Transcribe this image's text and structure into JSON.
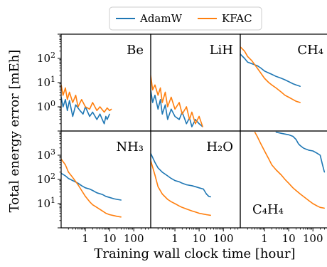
{
  "legend": {
    "items": [
      {
        "name": "AdamW",
        "color": "#1f77b4"
      },
      {
        "name": "KFAC",
        "color": "#ff7f0e"
      }
    ]
  },
  "axes": {
    "xlabel": "Training wall clock time [hour]",
    "ylabel": "Total energy error [mEh]",
    "xscale": "log",
    "yscale": "log",
    "top_row": {
      "ylim": [
        0.1,
        1000
      ],
      "yticks": [
        1,
        10,
        100
      ],
      "ytick_labels": [
        "10^0",
        "10^1",
        "10^2"
      ]
    },
    "bottom_row": {
      "ylim": [
        1,
        10000
      ],
      "yticks": [
        10,
        100,
        1000
      ],
      "ytick_labels": [
        "10^1",
        "10^2",
        "10^3"
      ]
    },
    "xlim": [
      0.1,
      500
    ],
    "xticks": [
      1,
      10,
      100
    ],
    "xtick_labels": [
      "1",
      "10",
      "100"
    ]
  },
  "chart_data": [
    {
      "type": "line",
      "title": "Be",
      "series": [
        {
          "name": "AdamW",
          "color": "#1f77b4",
          "x": [
            0.1,
            0.12,
            0.15,
            0.18,
            0.22,
            0.3,
            0.4,
            0.6,
            0.8,
            1,
            1.5,
            2,
            3,
            4,
            5,
            6,
            7,
            8,
            10
          ],
          "y": [
            2.5,
            1.0,
            2.0,
            0.7,
            1.8,
            0.4,
            1.2,
            0.7,
            0.5,
            1.0,
            0.4,
            0.6,
            0.3,
            0.5,
            0.3,
            0.2,
            0.4,
            0.3,
            0.5
          ]
        },
        {
          "name": "KFAC",
          "color": "#ff7f0e",
          "x": [
            0.1,
            0.12,
            0.15,
            0.18,
            0.22,
            0.3,
            0.4,
            0.5,
            0.7,
            1,
            1.5,
            2,
            3,
            4,
            6,
            8,
            10,
            12
          ],
          "y": [
            8,
            3,
            6,
            2,
            4,
            1.5,
            3,
            1,
            2,
            1,
            0.8,
            1.5,
            0.7,
            1.0,
            0.6,
            0.9,
            0.7,
            0.8
          ]
        }
      ]
    },
    {
      "type": "line",
      "title": "LiH",
      "series": [
        {
          "name": "AdamW",
          "color": "#1f77b4",
          "x": [
            0.1,
            0.12,
            0.15,
            0.2,
            0.25,
            0.3,
            0.4,
            0.5,
            0.7,
            1,
            1.5,
            2,
            3,
            4,
            5,
            7,
            10,
            14
          ],
          "y": [
            5,
            1.5,
            3,
            0.8,
            2,
            0.5,
            1.2,
            0.3,
            0.8,
            0.4,
            0.3,
            0.6,
            0.2,
            0.35,
            0.15,
            0.3,
            0.2,
            0.15
          ]
        },
        {
          "name": "KFAC",
          "color": "#ff7f0e",
          "x": [
            0.1,
            0.12,
            0.15,
            0.2,
            0.25,
            0.3,
            0.4,
            0.5,
            0.7,
            1,
            1.5,
            2,
            3,
            4,
            5,
            7,
            10,
            14
          ],
          "y": [
            20,
            5,
            8,
            3,
            6,
            1.5,
            4,
            1,
            2.5,
            0.8,
            1.5,
            0.5,
            1,
            0.3,
            0.6,
            0.2,
            0.4,
            0.15
          ]
        }
      ]
    },
    {
      "type": "line",
      "title": "CH₄",
      "series": [
        {
          "name": "AdamW",
          "color": "#1f77b4",
          "x": [
            0.1,
            0.15,
            0.2,
            0.3,
            0.5,
            0.7,
            1,
            1.5,
            2,
            3,
            5,
            7,
            10,
            15,
            20,
            30
          ],
          "y": [
            150,
            100,
            70,
            60,
            50,
            40,
            30,
            25,
            22,
            18,
            15,
            13,
            11,
            9,
            8,
            7
          ]
        },
        {
          "name": "KFAC",
          "color": "#ff7f0e",
          "x": [
            0.1,
            0.15,
            0.2,
            0.3,
            0.5,
            0.7,
            1,
            1.5,
            2,
            3,
            5,
            7,
            10,
            15,
            20,
            30
          ],
          "y": [
            300,
            200,
            120,
            80,
            40,
            25,
            15,
            10,
            8,
            6,
            4,
            3,
            2.5,
            2,
            1.7,
            1.5
          ]
        }
      ]
    },
    {
      "type": "line",
      "title": "NH₃",
      "series": [
        {
          "name": "AdamW",
          "color": "#1f77b4",
          "x": [
            0.1,
            0.15,
            0.2,
            0.3,
            0.5,
            0.7,
            1,
            1.5,
            2,
            3,
            5,
            7,
            10,
            15,
            20,
            30
          ],
          "y": [
            180,
            140,
            110,
            90,
            70,
            55,
            45,
            40,
            35,
            28,
            24,
            20,
            18,
            16,
            15,
            14
          ]
        },
        {
          "name": "KFAC",
          "color": "#ff7f0e",
          "x": [
            0.1,
            0.15,
            0.2,
            0.3,
            0.5,
            0.7,
            1,
            1.5,
            2,
            3,
            5,
            7,
            10,
            15,
            20,
            30
          ],
          "y": [
            700,
            400,
            200,
            120,
            60,
            35,
            20,
            12,
            9,
            7,
            5,
            4,
            3.5,
            3.2,
            3,
            2.8
          ]
        }
      ]
    },
    {
      "type": "line",
      "title": "H₂O",
      "series": [
        {
          "name": "AdamW",
          "color": "#1f77b4",
          "x": [
            0.1,
            0.15,
            0.2,
            0.3,
            0.5,
            0.7,
            1,
            1.5,
            2,
            3,
            5,
            7,
            10,
            15,
            20,
            25,
            30
          ],
          "y": [
            1200,
            500,
            300,
            200,
            140,
            110,
            90,
            80,
            70,
            60,
            55,
            50,
            45,
            40,
            25,
            20,
            19
          ]
        },
        {
          "name": "KFAC",
          "color": "#ff7f0e",
          "x": [
            0.1,
            0.15,
            0.2,
            0.3,
            0.5,
            0.7,
            1,
            1.5,
            2,
            3,
            5,
            7,
            10,
            15,
            20,
            30
          ],
          "y": [
            600,
            150,
            50,
            25,
            15,
            12,
            10,
            8,
            7,
            6,
            5,
            4.5,
            4,
            3.7,
            3.5,
            3.3
          ]
        }
      ]
    },
    {
      "type": "line",
      "title": "C₄H₄",
      "series": [
        {
          "name": "AdamW",
          "color": "#1f77b4",
          "x": [
            3,
            5,
            10,
            15,
            20,
            25,
            30,
            40,
            50,
            70,
            100,
            150,
            200,
            250,
            300
          ],
          "y": [
            9000,
            8000,
            7000,
            6000,
            4500,
            3000,
            2500,
            2000,
            1800,
            1600,
            1500,
            1200,
            1000,
            400,
            200
          ]
        },
        {
          "name": "KFAC",
          "color": "#ff7f0e",
          "x": [
            0.4,
            0.5,
            0.7,
            1,
            1.5,
            2,
            3,
            5,
            7,
            10,
            15,
            20,
            30,
            50,
            70,
            100,
            150,
            200,
            300
          ],
          "y": [
            9000,
            6000,
            3000,
            1500,
            700,
            400,
            250,
            150,
            100,
            70,
            45,
            35,
            25,
            17,
            13,
            10,
            8,
            7,
            6.5
          ]
        }
      ]
    }
  ]
}
